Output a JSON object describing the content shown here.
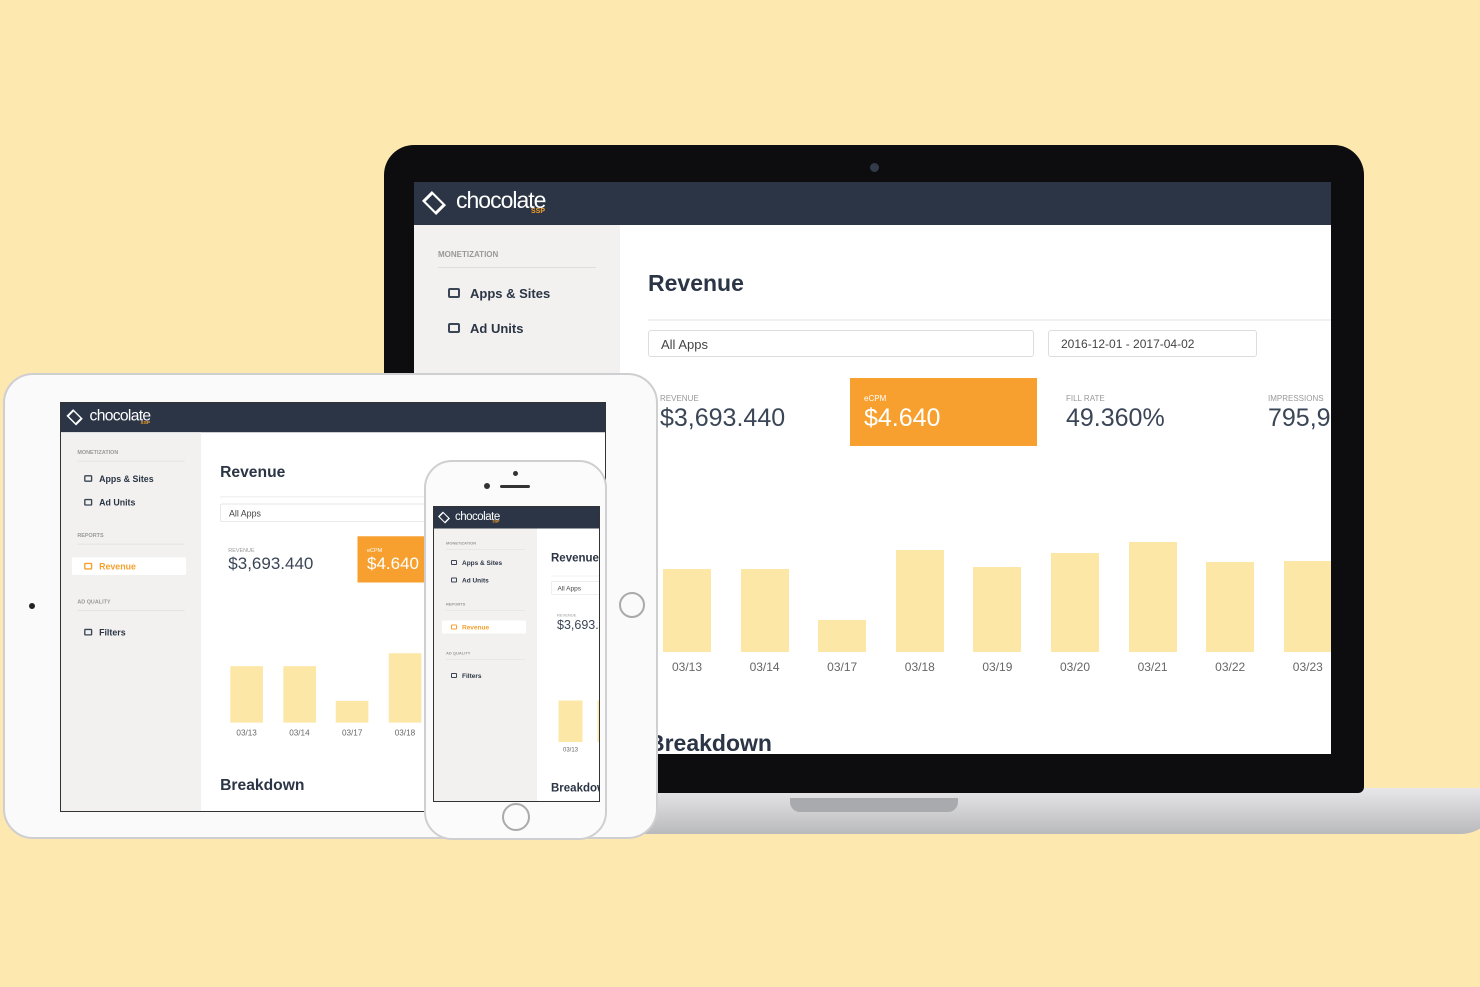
{
  "brand": {
    "name": "chocolate",
    "sub": "SSP"
  },
  "sidebar": {
    "sections": [
      {
        "title": "MONETIZATION",
        "items": [
          "Apps & Sites",
          "Ad Units"
        ]
      },
      {
        "title": "REPORTS",
        "items": [
          "Revenue"
        ]
      },
      {
        "title": "AD QUALITY",
        "items": [
          "Filters"
        ]
      }
    ]
  },
  "page_title": "Revenue",
  "filters": {
    "app": "All Apps",
    "date_range": "2016-12-01 - 2017-04-02"
  },
  "metrics": [
    {
      "label": "REVENUE",
      "value": "$3,693.440"
    },
    {
      "label": "eCPM",
      "value": "$4.640"
    },
    {
      "label": "FILL RATE",
      "value": "49.360%"
    },
    {
      "label": "IMPRESSIONS",
      "value": "795,9"
    }
  ],
  "chart_data": {
    "type": "bar",
    "categories": [
      "03/13",
      "03/14",
      "03/17",
      "03/18",
      "03/19",
      "03/20",
      "03/21",
      "03/22",
      "03/23"
    ],
    "values": [
      83,
      83,
      32,
      102,
      85,
      99,
      110,
      90,
      91
    ],
    "color": "#fde7a6"
  },
  "section_title": "Breakdown"
}
